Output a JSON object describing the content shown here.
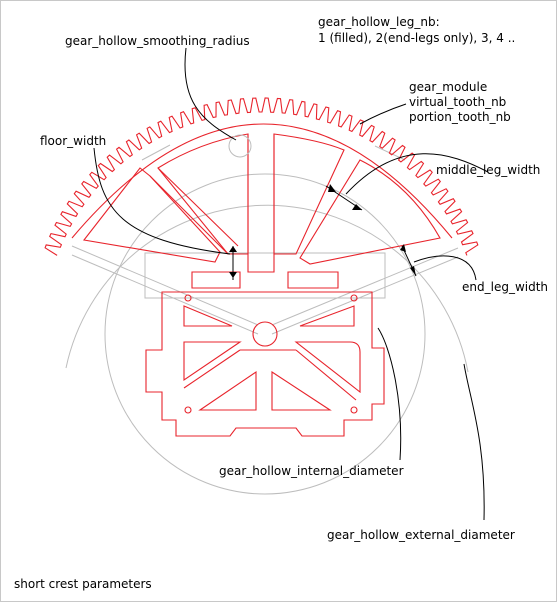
{
  "labels": {
    "leg_nb_title": "gear_hollow_leg_nb:",
    "leg_nb_values": "1 (filled), 2(end-legs only), 3, 4 ..",
    "smoothing_radius": "gear_hollow_smoothing_radius",
    "module": "gear_module",
    "virtual_tooth_nb": "virtual_tooth_nb",
    "portion_tooth_nb": "portion_tooth_nb",
    "floor_width": "floor_width",
    "middle_leg_width": "middle_leg_width",
    "end_leg_width": "end_leg_width",
    "internal_diameter": "gear_hollow_internal_diameter",
    "external_diameter": "gear_hollow_external_diameter",
    "caption": "short crest parameters"
  },
  "colors": {
    "outline": "#e8242c",
    "construction": "#bdbdbd",
    "annotation": "#000000"
  }
}
